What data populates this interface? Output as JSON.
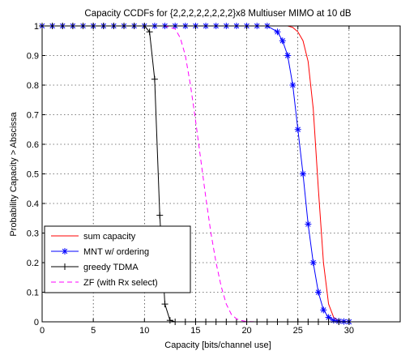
{
  "chart_data": {
    "type": "line",
    "title": "Capacity CCDFs for {2,2,2,2,2,2,2,2}x8 Multiuser MIMO at 10 dB",
    "xlabel": "Capacity [bits/channel use]",
    "ylabel": "Probability Capacity > Abscissa",
    "xlim": [
      0,
      35
    ],
    "ylim": [
      0,
      1
    ],
    "xticks": [
      "0",
      "5",
      "10",
      "15",
      "20",
      "25",
      "30"
    ],
    "yticks": [
      "0",
      "0.1",
      "0.2",
      "0.3",
      "0.4",
      "0.5",
      "0.6",
      "0.7",
      "0.8",
      "0.9",
      "1"
    ],
    "grid": true,
    "legend_position": "bottom-left",
    "series": [
      {
        "name": "sum capacity",
        "color": "#ff0000",
        "line": "solid",
        "marker": "none",
        "x": [
          0,
          23,
          24,
          24.5,
          25,
          25.5,
          26,
          26.5,
          27,
          27.5,
          28,
          28.5,
          29,
          29.5,
          30
        ],
        "y": [
          1,
          1,
          1,
          0.995,
          0.98,
          0.95,
          0.88,
          0.72,
          0.45,
          0.2,
          0.06,
          0.015,
          0.003,
          0.001,
          0
        ]
      },
      {
        "name": "MNT  w/ ordering",
        "color": "#0000ff",
        "line": "solid",
        "marker": "asterisk",
        "x": [
          0,
          1,
          2,
          3,
          4,
          5,
          6,
          7,
          8,
          9,
          10,
          11,
          12,
          13,
          14,
          15,
          16,
          17,
          18,
          19,
          20,
          21,
          22,
          23,
          23.5,
          24,
          24.5,
          25,
          25.5,
          26,
          26.5,
          27,
          27.5,
          28,
          28.5,
          29,
          29.5,
          30
        ],
        "y": [
          1,
          1,
          1,
          1,
          1,
          1,
          1,
          1,
          1,
          1,
          1,
          1,
          1,
          1,
          1,
          1,
          1,
          1,
          1,
          1,
          1,
          1,
          1,
          0.98,
          0.95,
          0.9,
          0.8,
          0.65,
          0.5,
          0.33,
          0.2,
          0.1,
          0.04,
          0.015,
          0.005,
          0.002,
          0.001,
          0
        ]
      },
      {
        "name": "greedy TDMA",
        "color": "#000000",
        "line": "solid",
        "marker": "plus",
        "x": [
          0,
          1,
          2,
          3,
          4,
          5,
          6,
          7,
          8,
          9,
          10,
          10.5,
          11,
          11.5,
          12,
          12.5,
          13,
          14,
          15,
          16,
          17,
          18,
          19,
          20,
          21,
          22,
          23,
          24,
          25,
          26,
          27,
          28,
          29,
          30
        ],
        "y": [
          1,
          1,
          1,
          1,
          1,
          1,
          1,
          1,
          1,
          1,
          1,
          0.98,
          0.82,
          0.36,
          0.06,
          0.005,
          0,
          0,
          0,
          0,
          0,
          0,
          0,
          0,
          0,
          0,
          0,
          0,
          0,
          0,
          0,
          0,
          0,
          0
        ]
      },
      {
        "name": "ZF (with Rx select)",
        "color": "#ff00ff",
        "line": "dashed",
        "marker": "none",
        "x": [
          0,
          12,
          13,
          13.5,
          14,
          14.5,
          15,
          15.5,
          16,
          16.5,
          17,
          17.5,
          18,
          18.5,
          19,
          19.5,
          20,
          21,
          30
        ],
        "y": [
          1,
          1,
          0.99,
          0.96,
          0.9,
          0.8,
          0.68,
          0.55,
          0.42,
          0.3,
          0.2,
          0.12,
          0.06,
          0.025,
          0.01,
          0.004,
          0.001,
          0,
          0
        ]
      }
    ]
  }
}
